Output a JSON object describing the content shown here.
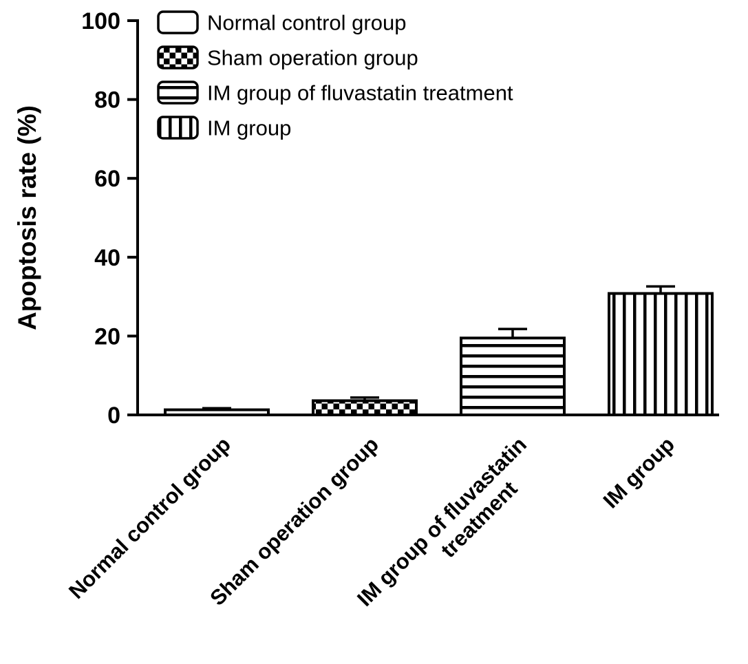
{
  "chart_data": {
    "type": "bar",
    "title": "",
    "xlabel": "",
    "ylabel": "Apoptosis rate (%)",
    "ylim": [
      0,
      100
    ],
    "yticks": [
      0,
      20,
      40,
      60,
      80,
      100
    ],
    "grid": false,
    "legend_position": "top-left",
    "bar_fill_color": "#ffffff",
    "stroke_color": "#000000",
    "categories": [
      "Normal control group",
      "Sham operation group",
      "IM group of fluvastatin\ntreatment",
      "IM group"
    ],
    "values": [
      1.3,
      3.6,
      19.5,
      30.8
    ],
    "errors": [
      0.4,
      0.8,
      2.3,
      1.8
    ],
    "patterns": [
      "plain",
      "checker",
      "hlines",
      "vlines"
    ],
    "legend": [
      {
        "label": "Normal control group",
        "pattern": "plain"
      },
      {
        "label": "Sham operation group",
        "pattern": "checker"
      },
      {
        "label": "IM group of fluvastatin treatment",
        "pattern": "hlines"
      },
      {
        "label": "IM group",
        "pattern": "vlines"
      }
    ]
  }
}
